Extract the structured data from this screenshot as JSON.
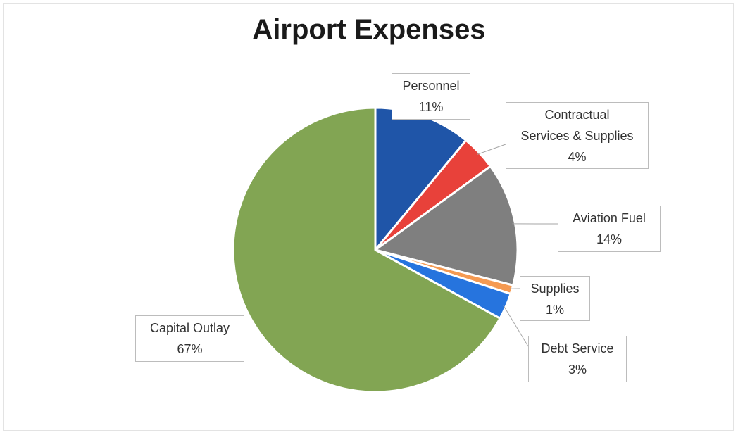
{
  "chart_data": {
    "type": "pie",
    "title": "Airport Expenses",
    "slices": [
      {
        "label": "Personnel",
        "value": 11,
        "value_label": "11%",
        "color": "#1f55a8"
      },
      {
        "label": "Contractual Services & Supplies",
        "label_lines": [
          "Contractual",
          "Services & Supplies"
        ],
        "value": 4,
        "value_label": "4%",
        "color": "#e8413a"
      },
      {
        "label": "Aviation Fuel",
        "value": 14,
        "value_label": "14%",
        "color": "#7f7f7f"
      },
      {
        "label": "Supplies",
        "value": 1,
        "value_label": "1%",
        "color": "#f59a52"
      },
      {
        "label": "Debt Service",
        "value": 3,
        "value_label": "3%",
        "color": "#2674de"
      },
      {
        "label": "Capital Outlay",
        "value": 67,
        "value_label": "67%",
        "color": "#82a553"
      }
    ],
    "legend": "none",
    "label_style": "callouts"
  }
}
